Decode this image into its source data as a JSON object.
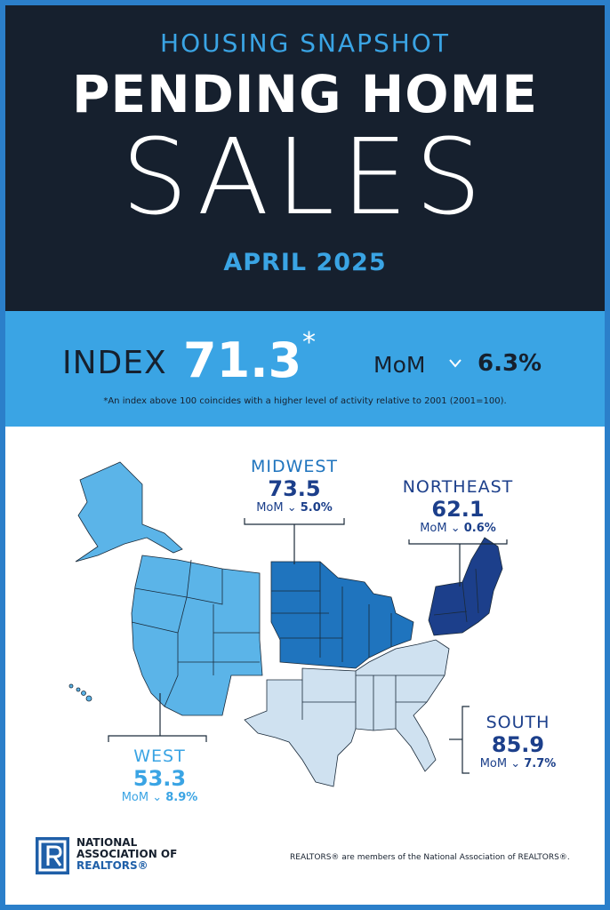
{
  "header": {
    "kicker": "HOUSING SNAPSHOT",
    "title_line1": "PENDING HOME",
    "title_line2": "SALES",
    "period": "APRIL 2025"
  },
  "index": {
    "label": "INDEX",
    "value": "71.3",
    "asterisk": "*",
    "mom_label": "MoM",
    "mom_change": "6.3%",
    "footnote": "*An index above 100 coincides with a higher level of activity relative to 2001 (2001=100)."
  },
  "regions": [
    {
      "name": "MIDWEST",
      "value": "73.5",
      "mom_label": "MoM",
      "mom_change": "5.0%"
    },
    {
      "name": "NORTHEAST",
      "value": "62.1",
      "mom_label": "MoM",
      "mom_change": "0.6%"
    },
    {
      "name": "SOUTH",
      "value": "85.9",
      "mom_label": "MoM",
      "mom_change": "7.7%"
    },
    {
      "name": "WEST",
      "value": "53.3",
      "mom_label": "MoM",
      "mom_change": "8.9%"
    }
  ],
  "footer": {
    "logo_line1": "NATIONAL",
    "logo_line2": "ASSOCIATION OF",
    "logo_line3": "REALTORS®",
    "note": "REALTORS® are members of the National Association of REALTORS®."
  }
}
